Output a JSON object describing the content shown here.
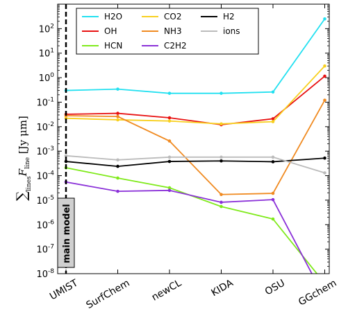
{
  "chart_data": {
    "type": "line",
    "categories": [
      "UMIST",
      "SurfChem",
      "newCL",
      "KIDA",
      "OSU",
      "GGchem"
    ],
    "ylabel": "Σ_lines F_line [Jy μm]",
    "ylabel_main": "∑",
    "ylabel_sub": "lines",
    "ylabel_rest": "F",
    "ylabel_rest_sub": "line",
    "ylabel_unit": " [Jy μm]",
    "yscale": "log",
    "ylim": [
      1e-08,
      1000
    ],
    "y_ticks": [
      {
        "exp": "-8"
      },
      {
        "exp": "-7"
      },
      {
        "exp": "-6"
      },
      {
        "exp": "-5"
      },
      {
        "exp": "-4"
      },
      {
        "exp": "-3"
      },
      {
        "exp": "-2"
      },
      {
        "exp": "-1"
      },
      {
        "exp": "0"
      },
      {
        "exp": "1"
      },
      {
        "exp": "2"
      }
    ],
    "y_tick_base": "10",
    "annotation": "main model",
    "legend_position": "top",
    "series": [
      {
        "name": "H2O",
        "color": "#22e0f0",
        "values": [
          0.3,
          0.34,
          0.23,
          0.23,
          0.26,
          250
        ]
      },
      {
        "name": "OH",
        "color": "#e81010",
        "values": [
          0.032,
          0.035,
          0.023,
          0.012,
          0.021,
          1.15
        ]
      },
      {
        "name": "HCN",
        "color": "#7fea1a",
        "values": [
          0.00021,
          8e-05,
          3.2e-05,
          5.5e-06,
          1.7e-06,
          4e-09
        ]
      },
      {
        "name": "CO2",
        "color": "#f8d020",
        "values": [
          0.022,
          0.019,
          0.017,
          0.013,
          0.016,
          3.0
        ]
      },
      {
        "name": "NH3",
        "color": "#f08a20",
        "values": [
          0.028,
          0.026,
          0.0026,
          1.7e-05,
          1.9e-05,
          0.12
        ]
      },
      {
        "name": "C2H2",
        "color": "#8a30d8",
        "values": [
          5.5e-05,
          2.3e-05,
          2.5e-05,
          8.2e-06,
          1.05e-05,
          1e-09
        ]
      },
      {
        "name": "H2",
        "color": "#000000",
        "values": [
          0.00038,
          0.00024,
          0.00038,
          0.0004,
          0.00037,
          0.00052
        ]
      },
      {
        "name": "ions",
        "color": "#bbbbbb",
        "values": [
          0.00065,
          0.00044,
          0.00057,
          0.00057,
          0.00057,
          0.00013
        ]
      }
    ]
  }
}
